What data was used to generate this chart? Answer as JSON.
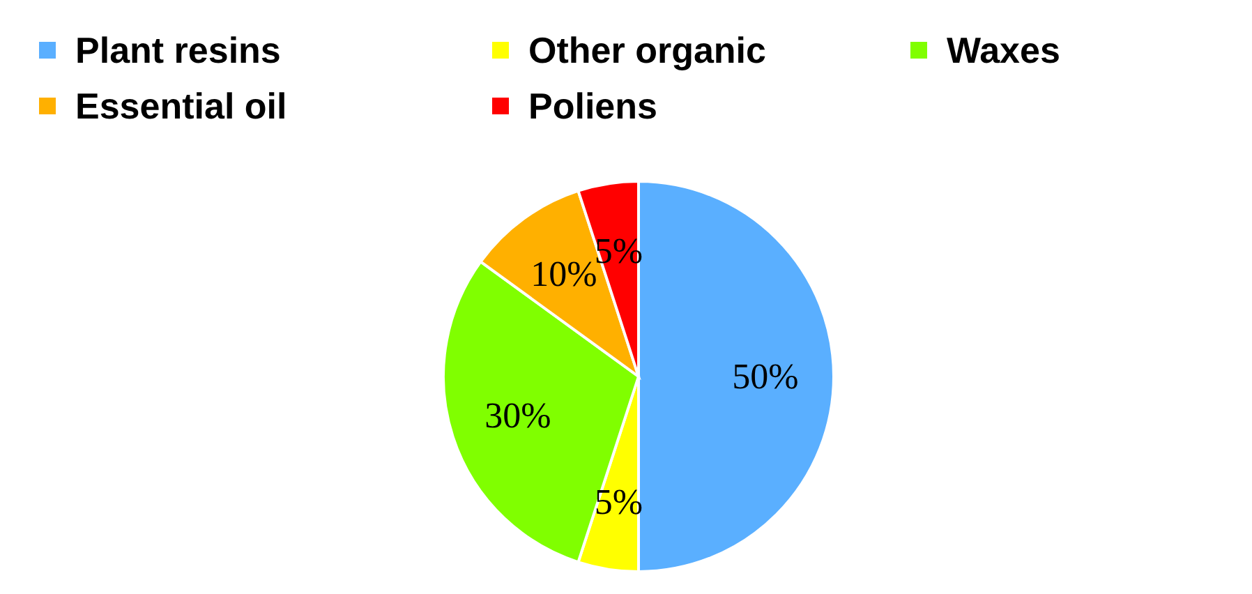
{
  "chart_data": {
    "type": "pie",
    "categories": [
      "Plant resins",
      "Other organic",
      "Waxes",
      "Essential oil",
      "Poliens"
    ],
    "values": [
      50,
      5,
      30,
      10,
      5
    ],
    "colors": [
      "#5aafff",
      "#ffff00",
      "#80ff00",
      "#ffb000",
      "#ff0000"
    ],
    "value_labels": [
      "50%",
      "5%",
      "30%",
      "10%",
      "5%"
    ],
    "legend": "top"
  }
}
